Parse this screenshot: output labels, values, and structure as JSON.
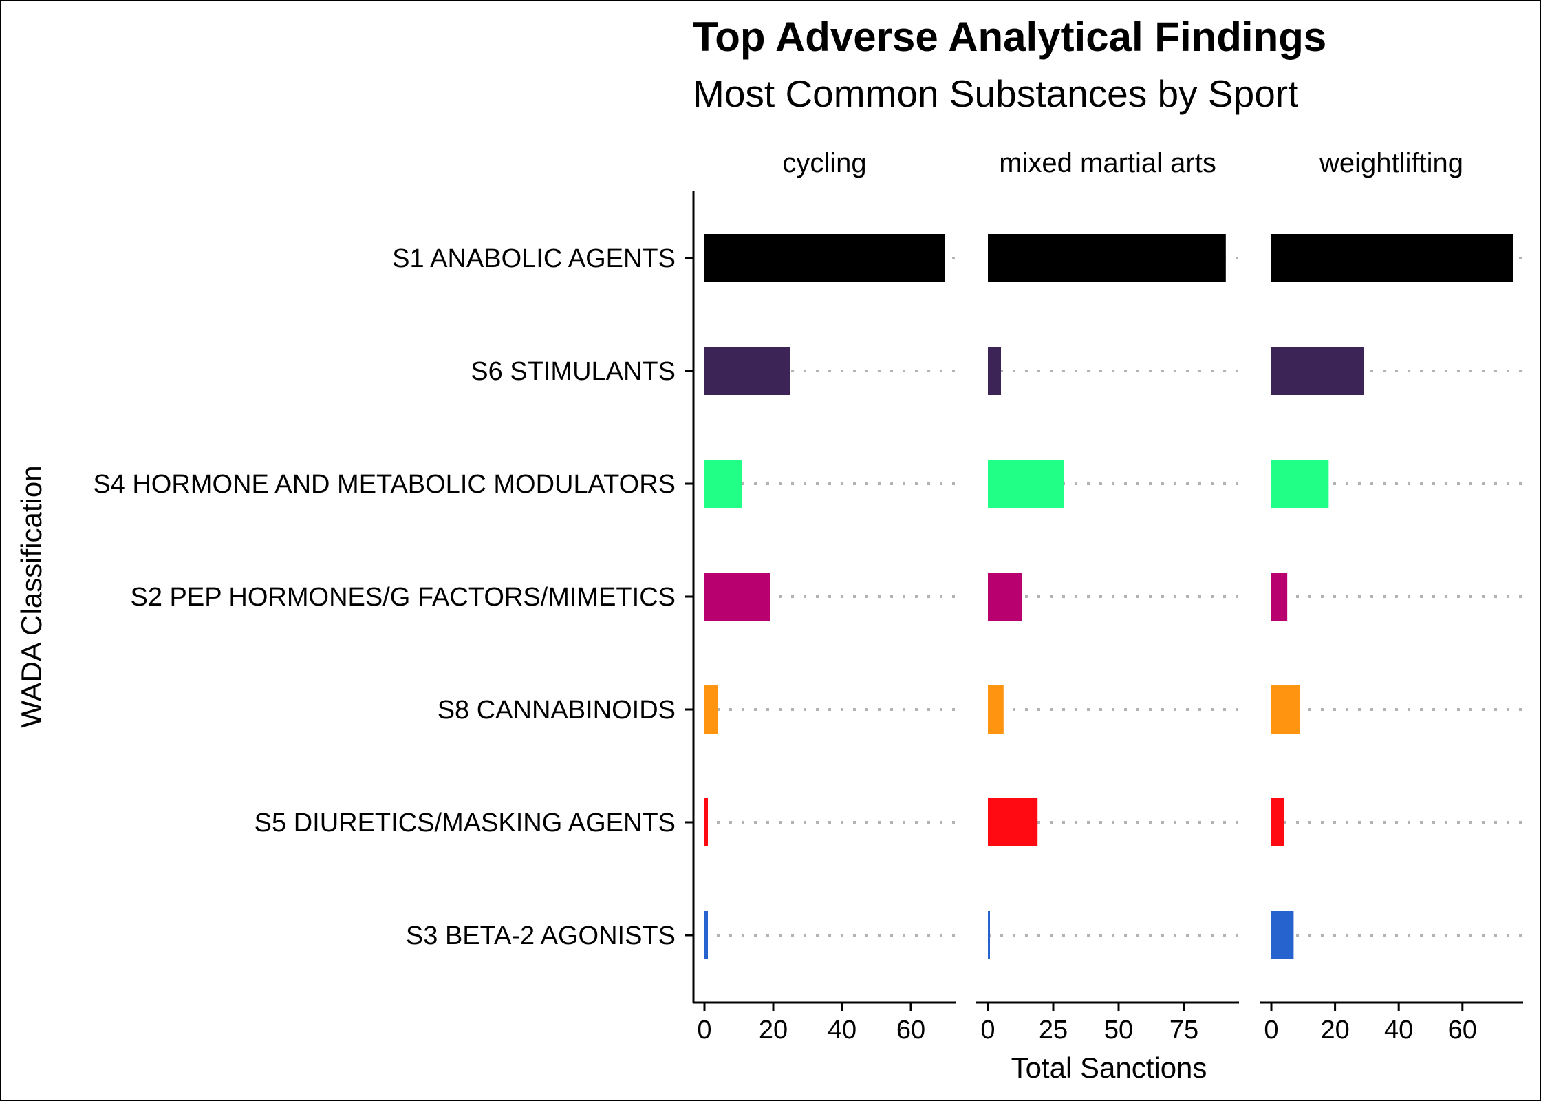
{
  "chart_data": {
    "type": "bar",
    "orientation": "horizontal",
    "title": "Top Adverse Analytical Findings",
    "subtitle": "Most Common Substances by Sport",
    "xlabel": "Total Sanctions",
    "ylabel": "WADA Classification",
    "categories": [
      "S1 ANABOLIC AGENTS",
      "S6 STIMULANTS",
      "S4 HORMONE AND METABOLIC MODULATORS",
      "S2 PEP HORMONES/G FACTORS/MIMETICS",
      "S8 CANNABINOIDS",
      "S5 DIURETICS/MASKING AGENTS",
      "S3 BETA-2 AGONISTS"
    ],
    "colors": [
      "#000000",
      "#3C2556",
      "#22FF87",
      "#B8006E",
      "#FF9410",
      "#FF0A12",
      "#2763CE"
    ],
    "grid": "dotted lines per category",
    "facets": [
      {
        "name": "cycling",
        "xlim": [
          0,
          72
        ],
        "ticks": [
          0,
          20,
          40,
          60
        ],
        "values": [
          70,
          25,
          11,
          19,
          4,
          1,
          1
        ]
      },
      {
        "name": "mixed martial arts",
        "xlim": [
          0,
          94
        ],
        "ticks": [
          0,
          25,
          50,
          75
        ],
        "values": [
          91,
          5,
          29,
          13,
          6,
          19,
          0.5
        ]
      },
      {
        "name": "weightlifting",
        "xlim": [
          0,
          79
        ],
        "ticks": [
          0,
          20,
          40,
          60
        ],
        "values": [
          76,
          29,
          18,
          5,
          9,
          4,
          7
        ]
      }
    ]
  }
}
